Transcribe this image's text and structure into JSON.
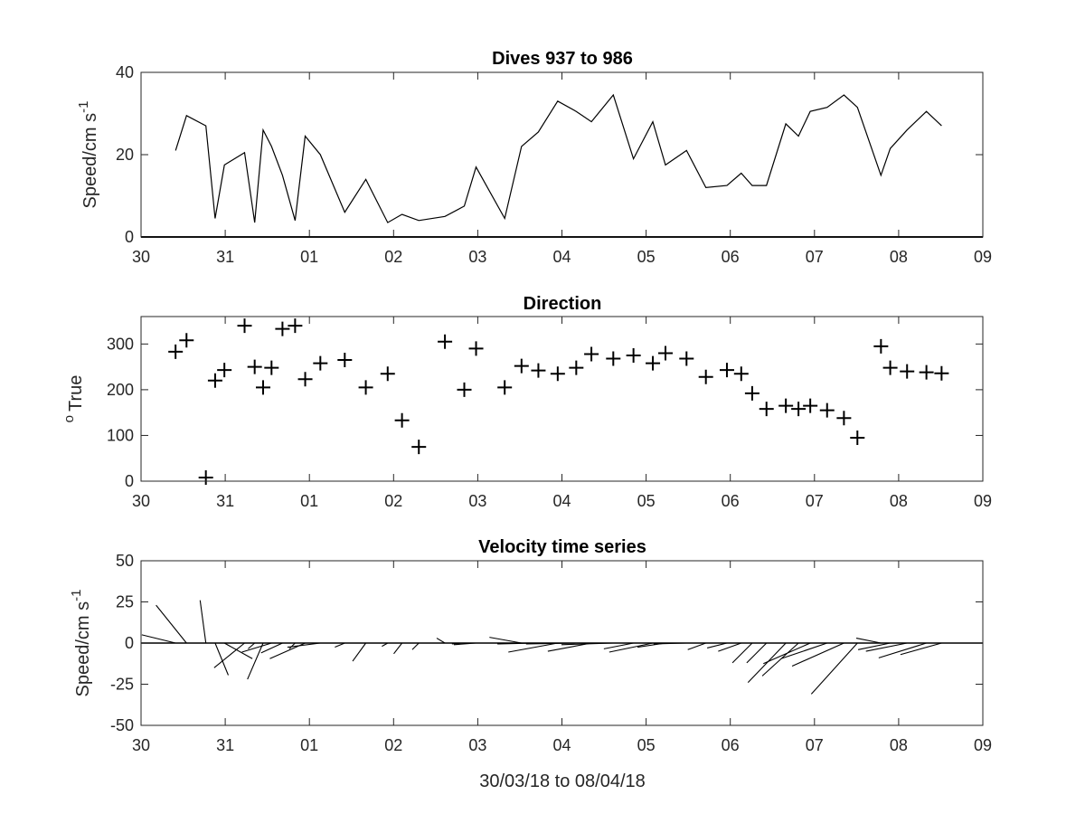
{
  "colors": {
    "line": "#000000",
    "axis": "#262626",
    "background": "#ffffff"
  },
  "chart_data": [
    {
      "type": "line",
      "title": "Dives 937 to 986",
      "ylabel": "Speed/cm s",
      "ylabel_superscript": "-1",
      "xlim": [
        0,
        10
      ],
      "ylim": [
        0,
        40
      ],
      "xtick_values": [
        0,
        1,
        2,
        3,
        4,
        5,
        6,
        7,
        8,
        9,
        10
      ],
      "xtick_labels": [
        "30",
        "31",
        "01",
        "02",
        "03",
        "04",
        "05",
        "06",
        "07",
        "08",
        "09"
      ],
      "ytick_values": [
        0,
        20,
        40
      ],
      "ytick_labels": [
        "0",
        "20",
        "40"
      ],
      "grid": false,
      "legend": "none",
      "series": [
        {
          "x": [
            0.41,
            0.54,
            0.77,
            0.88,
            0.99,
            1.23,
            1.35,
            1.45,
            1.55,
            1.68,
            1.83,
            1.95,
            2.13,
            2.42,
            2.67,
            2.93,
            3.1,
            3.3,
            3.61,
            3.84,
            3.98,
            4.32,
            4.52,
            4.72,
            4.95,
            5.17,
            5.35,
            5.61,
            5.85,
            6.08,
            6.23,
            6.48,
            6.71,
            6.96,
            7.13,
            7.26,
            7.43,
            7.66,
            7.81,
            7.95,
            8.15,
            8.35,
            8.51,
            8.79,
            8.9,
            9.1,
            9.33,
            9.51
          ],
          "y": [
            21,
            29.5,
            27,
            4.5,
            17.5,
            20.5,
            3.5,
            26,
            22,
            15,
            4,
            24.5,
            20,
            6,
            14,
            3.5,
            5.5,
            4,
            5,
            7.5,
            17,
            4.5,
            22,
            25.5,
            33,
            30.5,
            28,
            34.5,
            19,
            28,
            17.5,
            21,
            12,
            12.5,
            15.5,
            12.5,
            12.5,
            27.5,
            24.5,
            30.5,
            31.5,
            34.5,
            31.5,
            15,
            21.5,
            26,
            30.5,
            27
          ]
        }
      ]
    },
    {
      "type": "scatter",
      "title": "Direction",
      "ylabel": "True",
      "ylabel_superscript": "o",
      "xlim": [
        0,
        10
      ],
      "ylim": [
        0,
        360
      ],
      "xtick_values": [
        0,
        1,
        2,
        3,
        4,
        5,
        6,
        7,
        8,
        9,
        10
      ],
      "xtick_labels": [
        "30",
        "31",
        "01",
        "02",
        "03",
        "04",
        "05",
        "06",
        "07",
        "08",
        "09"
      ],
      "ytick_values": [
        0,
        100,
        200,
        300
      ],
      "ytick_labels": [
        "0",
        "100",
        "200",
        "300"
      ],
      "grid": false,
      "legend": "none",
      "marker": "+",
      "series": [
        {
          "x": [
            0.41,
            0.54,
            0.77,
            0.88,
            0.99,
            1.23,
            1.35,
            1.45,
            1.55,
            1.68,
            1.83,
            1.95,
            2.13,
            2.42,
            2.67,
            2.93,
            3.1,
            3.3,
            3.61,
            3.84,
            3.98,
            4.32,
            4.52,
            4.72,
            4.95,
            5.17,
            5.35,
            5.61,
            5.85,
            6.08,
            6.23,
            6.48,
            6.71,
            6.96,
            7.13,
            7.26,
            7.43,
            7.66,
            7.81,
            7.95,
            8.15,
            8.35,
            8.51,
            8.79,
            8.9,
            9.1,
            9.33,
            9.51
          ],
          "y": [
            283,
            308,
            8,
            220,
            243,
            340,
            250,
            205,
            248,
            333,
            340,
            223,
            258,
            265,
            205,
            235,
            133,
            75,
            305,
            200,
            290,
            205,
            252,
            242,
            235,
            248,
            278,
            268,
            275,
            258,
            280,
            268,
            228,
            243,
            235,
            192,
            158,
            165,
            158,
            165,
            155,
            138,
            95,
            295,
            248,
            240,
            238,
            236
          ]
        }
      ]
    },
    {
      "type": "line",
      "title": "Velocity time series",
      "ylabel": "Speed/cm s",
      "ylabel_superscript": "-1",
      "xlabel": "30/03/18 to 08/04/18",
      "xlim": [
        0,
        10
      ],
      "ylim": [
        -50,
        50
      ],
      "xtick_values": [
        0,
        1,
        2,
        3,
        4,
        5,
        6,
        7,
        8,
        9,
        10
      ],
      "xtick_labels": [
        "30",
        "31",
        "01",
        "02",
        "03",
        "04",
        "05",
        "06",
        "07",
        "08",
        "09"
      ],
      "ytick_values": [
        -50,
        -25,
        0,
        25,
        50
      ],
      "ytick_labels": [
        "-50",
        "-25",
        "0",
        "25",
        "50"
      ],
      "grid": false,
      "legend": "none",
      "series": [
        {
          "x": [
            0.41,
            0.54,
            0.77,
            0.88,
            0.99,
            1.23,
            1.35,
            1.45,
            1.55,
            1.68,
            1.83,
            1.95,
            2.13,
            2.42,
            2.67,
            2.93,
            3.1,
            3.3,
            3.61,
            3.84,
            3.98,
            4.32,
            4.52,
            4.72,
            4.95,
            5.17,
            5.35,
            5.61,
            5.85,
            6.08,
            6.23,
            6.48,
            6.71,
            6.96,
            7.13,
            7.26,
            7.43,
            7.66,
            7.81,
            7.95,
            8.15,
            8.35,
            8.51,
            8.79,
            8.9,
            9.1,
            9.33,
            9.51
          ],
          "u": [
            -20.5,
            -18.5,
            -3.5,
            8,
            17,
            -18.5,
            -4,
            -9.5,
            -18,
            -13,
            -3.5,
            -21.5,
            -20,
            -6,
            -8,
            -3.5,
            -5,
            -4,
            -5,
            -7.5,
            -13.5,
            -4.5,
            -19.5,
            -24.5,
            -30,
            -30.5,
            -26.5,
            -31.5,
            -18,
            -26.5,
            -17,
            -20,
            -11,
            -12,
            -14,
            -12,
            -12,
            -23,
            -22,
            -28.5,
            -28,
            -31.5,
            -28,
            -15,
            -19.5,
            -25,
            -29,
            -25
          ],
          "v": [
            5,
            23,
            26,
            -19.5,
            -9.5,
            -15,
            -3.5,
            -22,
            -5.5,
            -6,
            -3.5,
            -9.5,
            -2.5,
            -2.5,
            -11,
            -2,
            -6.5,
            -4,
            3,
            -0.5,
            -1,
            -0.5,
            3.5,
            -0.5,
            -5.5,
            -0.5,
            -5,
            -1,
            -3.5,
            -5.5,
            -2.5,
            -0.5,
            -4,
            -3,
            -5,
            -12,
            -12,
            -24,
            -20,
            -12.5,
            -9.5,
            -14,
            -31,
            3,
            -4,
            -5,
            -9,
            -7
          ]
        }
      ]
    }
  ]
}
